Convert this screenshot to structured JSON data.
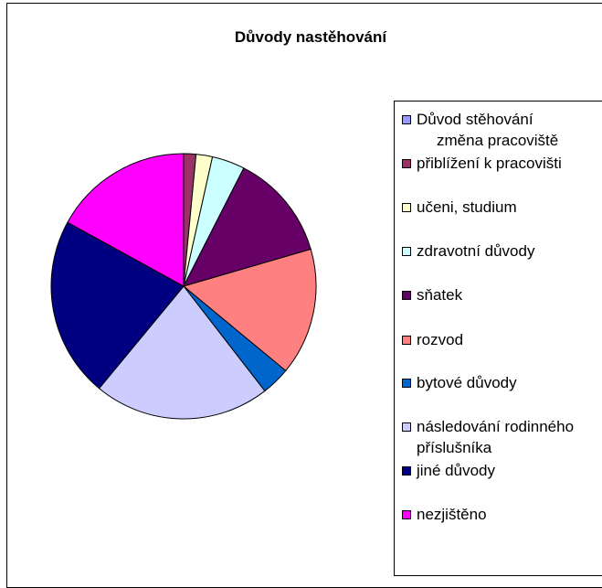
{
  "chart_data": {
    "type": "pie",
    "title": "Důvody nastěhování",
    "legend_position": "right",
    "slices": [
      {
        "label": "Důvod stěhování",
        "label_line2": "změna pracoviště",
        "value": 0,
        "color": "#9999FF"
      },
      {
        "label": "přiblížení k pracovišti",
        "value": 1.5,
        "color": "#993366"
      },
      {
        "label": "učeni, studium",
        "value": 2.0,
        "color": "#FFFFCC"
      },
      {
        "label": "zdravotní důvody",
        "value": 4.0,
        "color": "#CCFFFF"
      },
      {
        "label": "sňatek",
        "value": 13.0,
        "color": "#660066"
      },
      {
        "label": "rozvod",
        "value": 15.5,
        "color": "#FF8080"
      },
      {
        "label": "bytové důvody",
        "value": 3.5,
        "color": "#0066CC"
      },
      {
        "label": "následování rodinného",
        "label_line2": "příslušníka",
        "value": 21.5,
        "color": "#CCCCFF"
      },
      {
        "label": "jiné důvody",
        "value": 22.0,
        "color": "#000080"
      },
      {
        "label": "nezjištěno",
        "value": 17.0,
        "color": "#FF00FF"
      }
    ]
  }
}
